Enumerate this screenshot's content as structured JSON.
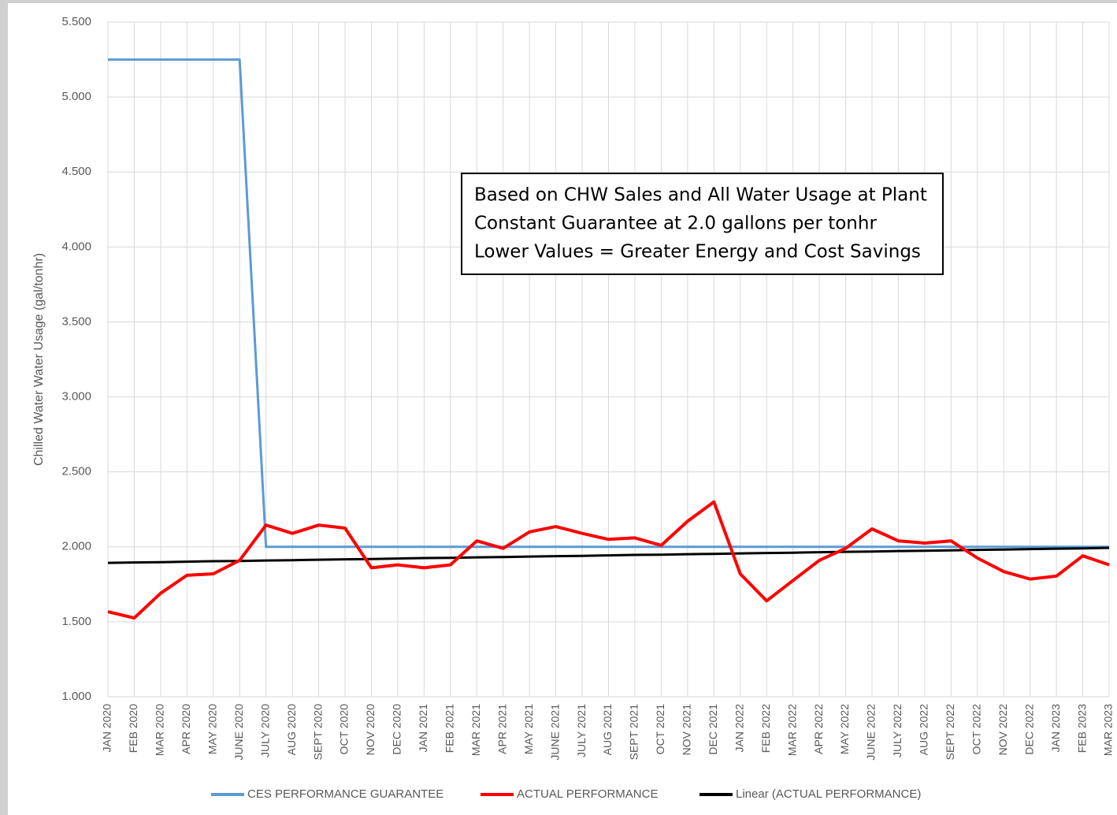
{
  "chart_data": {
    "type": "line",
    "y_label": "Chilled Water Water Usage (gal/tonhr)",
    "annotations": [
      "Based on CHW Sales and All Water Usage at Plant",
      "Constant Guarantee at 2.0 gallons per tonhr",
      "Lower Values  = Greater Energy and Cost Savings"
    ],
    "categories": [
      "JAN 2020",
      "FEB 2020",
      "MAR 2020",
      "APR 2020",
      "MAY 2020",
      "JUNE 2020",
      "JULY 2020",
      "AUG 2020",
      "SEPT 2020",
      "OCT 2020",
      "NOV 2020",
      "DEC 2020",
      "JAN 2021",
      "FEB 2021",
      "MAR 2021",
      "APR 2021",
      "MAY 2021",
      "JUNE 2021",
      "JULY 2021",
      "AUG 2021",
      "SEPT 2021",
      "OCT 2021",
      "NOV 2021",
      "DEC 2021",
      "JAN 2022",
      "FEB 2022",
      "MAR 2022",
      "APR 2022",
      "MAY 2022",
      "JUNE 2022",
      "JULY 2022",
      "AUG 2022",
      "SEPT 2022",
      "OCT 2022",
      "NOV 2022",
      "DEC 2022",
      "JAN 2023",
      "FEB 2023",
      "MAR 2023"
    ],
    "series": [
      {
        "name": "CES PERFORMANCE GUARANTEE",
        "color": "#5b9bd5",
        "values": [
          5.25,
          5.25,
          5.25,
          5.25,
          5.25,
          5.25,
          2.0,
          2.0,
          2.0,
          2.0,
          2.0,
          2.0,
          2.0,
          2.0,
          2.0,
          2.0,
          2.0,
          2.0,
          2.0,
          2.0,
          2.0,
          2.0,
          2.0,
          2.0,
          2.0,
          2.0,
          2.0,
          2.0,
          2.0,
          2.0,
          2.0,
          2.0,
          2.0,
          2.0,
          2.0,
          2.0,
          2.0,
          2.0,
          2.0
        ]
      },
      {
        "name": "ACTUAL PERFORMANCE",
        "color": "#ff0000",
        "values": [
          1.567,
          1.525,
          1.69,
          1.81,
          1.82,
          1.91,
          2.145,
          2.09,
          2.145,
          2.125,
          1.86,
          1.88,
          1.86,
          1.88,
          2.04,
          1.99,
          2.1,
          2.135,
          2.09,
          2.05,
          2.06,
          2.01,
          2.17,
          2.3,
          1.82,
          1.64,
          1.775,
          1.91,
          1.99,
          2.12,
          2.04,
          2.025,
          2.04,
          1.925,
          1.835,
          1.785,
          1.805,
          1.94,
          1.88
        ]
      },
      {
        "name": "Linear (ACTUAL PERFORMANCE)",
        "color": "#000000",
        "values": [
          1.893,
          1.896,
          1.898,
          1.901,
          1.904,
          1.906,
          1.909,
          1.911,
          1.914,
          1.917,
          1.919,
          1.922,
          1.925,
          1.927,
          1.93,
          1.932,
          1.935,
          1.938,
          1.94,
          1.943,
          1.946,
          1.948,
          1.951,
          1.953,
          1.956,
          1.959,
          1.961,
          1.964,
          1.967,
          1.969,
          1.972,
          1.974,
          1.977,
          1.98,
          1.982,
          1.985,
          1.988,
          1.99,
          1.993
        ]
      }
    ],
    "ylim": [
      1.0,
      5.5
    ],
    "yticks": [
      {
        "value": 1.0,
        "label": "1.000"
      },
      {
        "value": 1.5,
        "label": "1.500"
      },
      {
        "value": 2.0,
        "label": "2.000"
      },
      {
        "value": 2.5,
        "label": "2.500"
      },
      {
        "value": 3.0,
        "label": "3.000"
      },
      {
        "value": 3.5,
        "label": "3.500"
      },
      {
        "value": 4.0,
        "label": "4.000"
      },
      {
        "value": 4.5,
        "label": "4.500"
      },
      {
        "value": 5.0,
        "label": "5.000"
      },
      {
        "value": 5.5,
        "label": "5.500"
      }
    ],
    "grid": true,
    "legend": "bottom"
  }
}
